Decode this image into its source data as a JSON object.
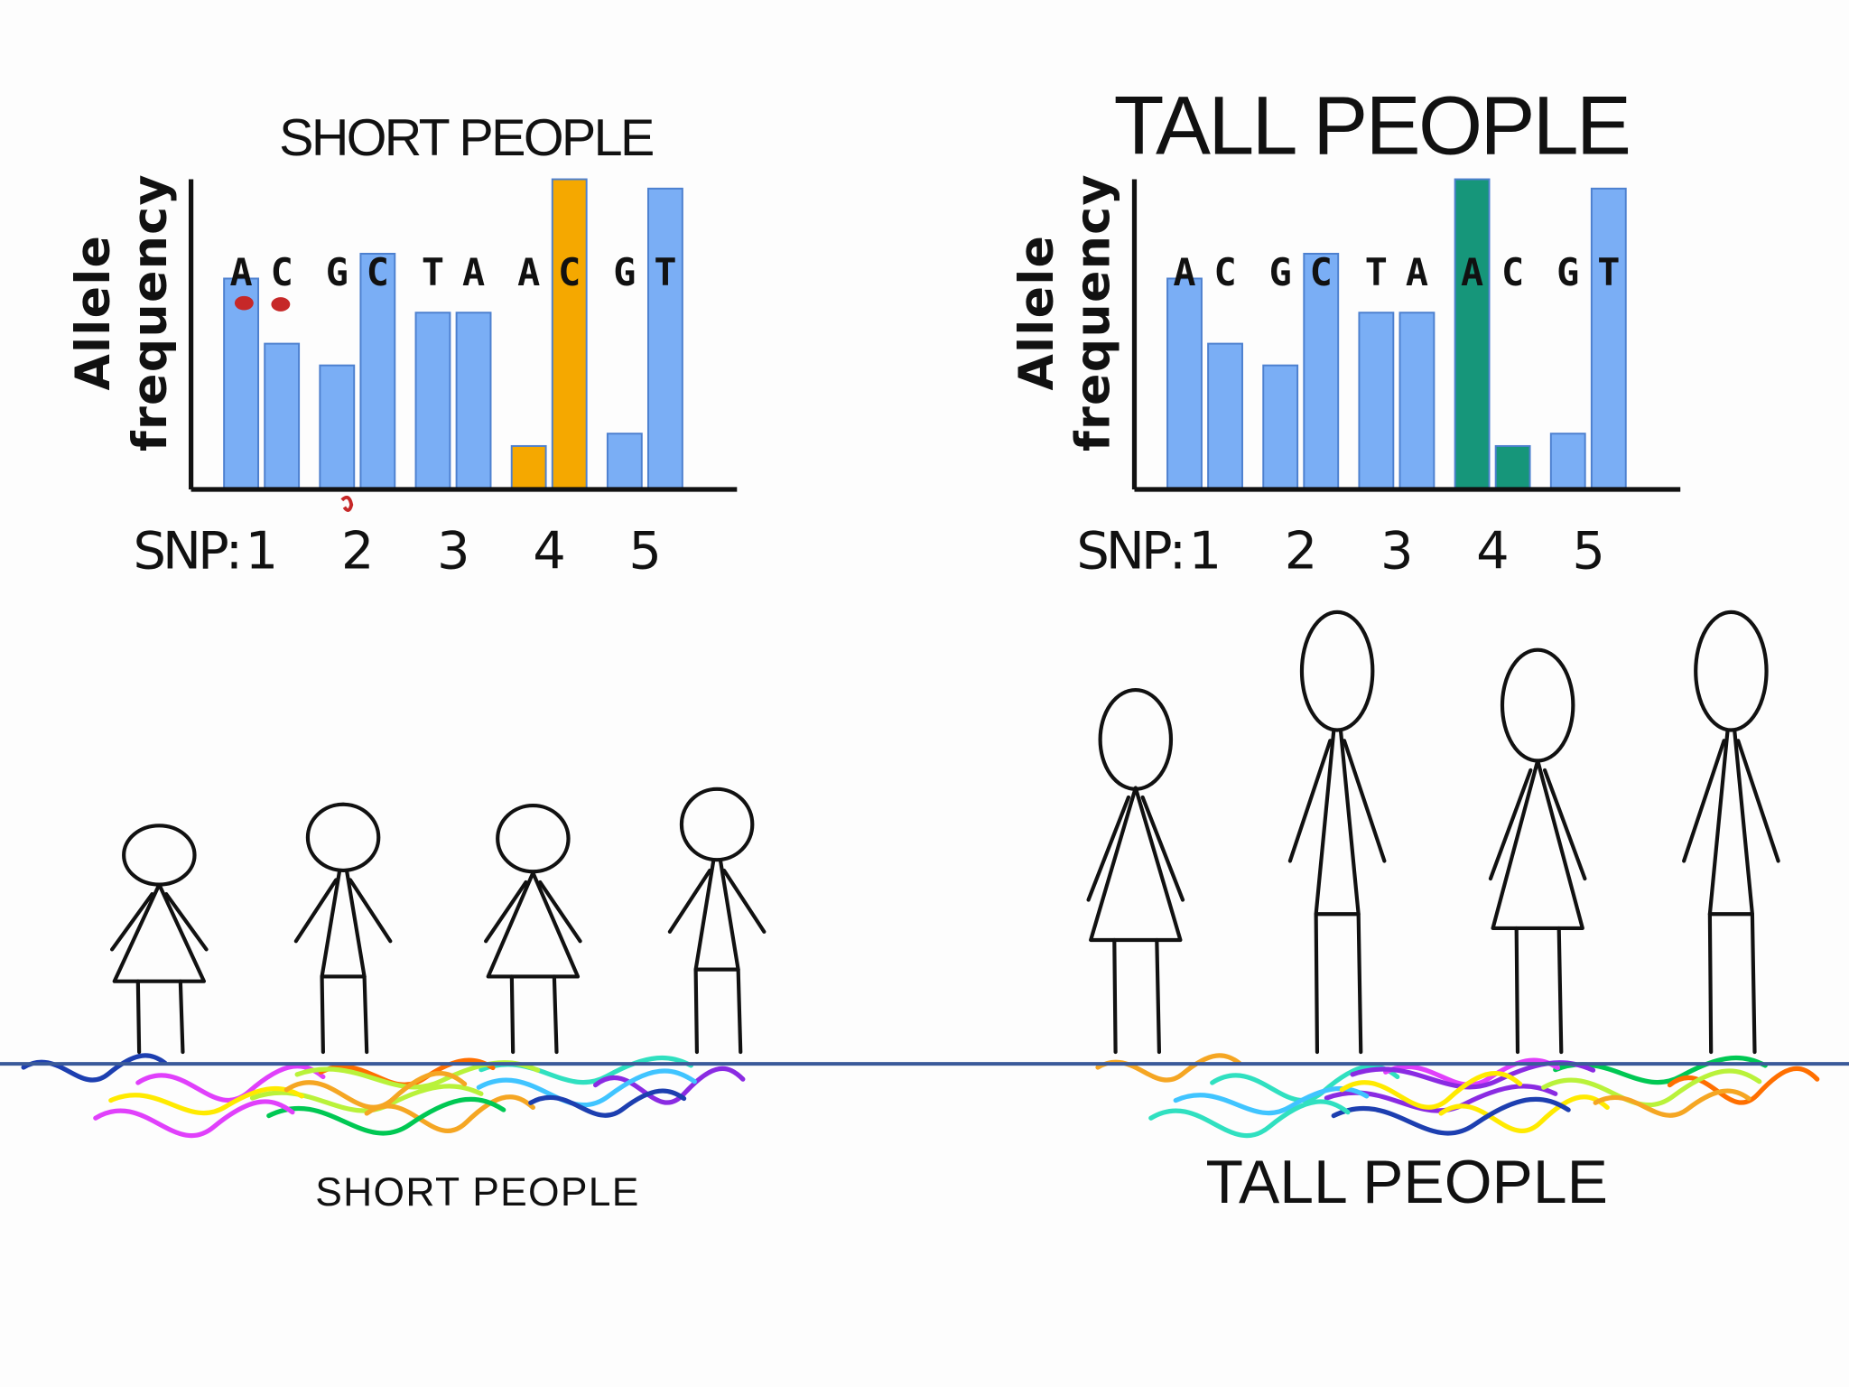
{
  "chart_data": [
    {
      "type": "bar",
      "title": "SHORT PEOPLE",
      "ylabel": [
        "Allele",
        "frequency"
      ],
      "xlabel": "SNP:",
      "categories": [
        "1",
        "2",
        "3",
        "4",
        "5"
      ],
      "ylim": [
        0,
        100
      ],
      "alleles": [
        {
          "letters": [
            "A",
            "C"
          ],
          "values": [
            68,
            47
          ],
          "colors": [
            "#7aaef5",
            "#7aaef5"
          ]
        },
        {
          "letters": [
            "G",
            "C"
          ],
          "values": [
            40,
            76
          ],
          "colors": [
            "#7aaef5",
            "#7aaef5"
          ]
        },
        {
          "letters": [
            "T",
            "A"
          ],
          "values": [
            57,
            57
          ],
          "colors": [
            "#7aaef5",
            "#7aaef5"
          ]
        },
        {
          "letters": [
            "A",
            "C"
          ],
          "values": [
            14,
            100
          ],
          "colors": [
            "#f5a800",
            "#f5a800"
          ]
        },
        {
          "letters": [
            "G",
            "T"
          ],
          "values": [
            18,
            97
          ],
          "colors": [
            "#7aaef5",
            "#7aaef5"
          ]
        }
      ]
    },
    {
      "type": "bar",
      "title": "TALL PEOPLE",
      "ylabel": [
        "Allele",
        "frequency"
      ],
      "xlabel": "SNP:",
      "categories": [
        "1",
        "2",
        "3",
        "4",
        "5"
      ],
      "ylim": [
        0,
        100
      ],
      "alleles": [
        {
          "letters": [
            "A",
            "C"
          ],
          "values": [
            68,
            47
          ],
          "colors": [
            "#7aaef5",
            "#7aaef5"
          ]
        },
        {
          "letters": [
            "G",
            "C"
          ],
          "values": [
            40,
            76
          ],
          "colors": [
            "#7aaef5",
            "#7aaef5"
          ]
        },
        {
          "letters": [
            "T",
            "A"
          ],
          "values": [
            57,
            57
          ],
          "colors": [
            "#7aaef5",
            "#7aaef5"
          ]
        },
        {
          "letters": [
            "A",
            "C"
          ],
          "values": [
            100,
            14
          ],
          "colors": [
            "#16967a",
            "#16967a"
          ]
        },
        {
          "letters": [
            "G",
            "T"
          ],
          "values": [
            18,
            97
          ],
          "colors": [
            "#7aaef5",
            "#7aaef5"
          ]
        }
      ]
    }
  ],
  "captions": [
    "SHORT PEOPLE",
    "TALL PEOPLE"
  ]
}
